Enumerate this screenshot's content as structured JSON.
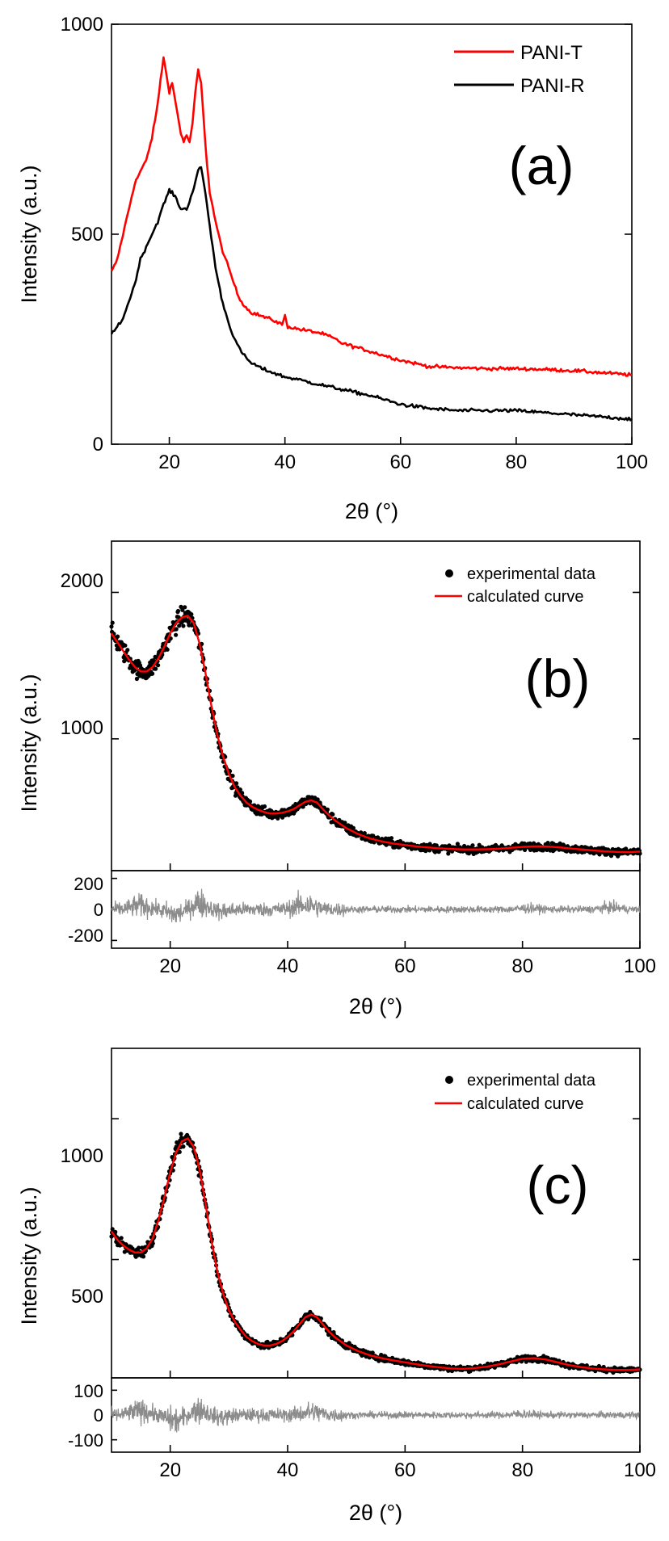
{
  "colors": {
    "red": "#ff0000",
    "black": "#000000",
    "gray": "#8c8c8c"
  },
  "chart_data": [
    {
      "id": "a",
      "type": "line",
      "panel_label": "(a)",
      "xlabel": "2θ (°)",
      "ylabel": "Intensity (a.u.)",
      "xlim": [
        10,
        100
      ],
      "ylim": [
        0,
        1000
      ],
      "xticks": [
        20,
        40,
        60,
        80,
        100
      ],
      "yticks": [
        0,
        500,
        1000
      ],
      "legend_position": "top-right",
      "series": [
        {
          "name": "PANI-T",
          "color": "#ff0000",
          "x": [
            10,
            11,
            12,
            13,
            14,
            15,
            16,
            17,
            18,
            18.5,
            19,
            19.5,
            20,
            20.5,
            21,
            21.5,
            22,
            22.5,
            23,
            23.5,
            24,
            24.5,
            25,
            25.5,
            26,
            26.5,
            27,
            28,
            29,
            30,
            31,
            32,
            33,
            34,
            35,
            36,
            38,
            39.5,
            40,
            40.5,
            42,
            44,
            46,
            48,
            50,
            55,
            60,
            65,
            70,
            75,
            80,
            85,
            90,
            95,
            100
          ],
          "y": [
            410,
            440,
            500,
            560,
            620,
            650,
            675,
            730,
            810,
            870,
            920,
            880,
            840,
            860,
            820,
            780,
            740,
            720,
            735,
            720,
            760,
            840,
            890,
            860,
            760,
            670,
            600,
            530,
            470,
            430,
            390,
            350,
            330,
            315,
            310,
            305,
            295,
            285,
            305,
            280,
            275,
            270,
            265,
            255,
            240,
            220,
            200,
            185,
            182,
            180,
            180,
            178,
            175,
            170,
            165
          ]
        },
        {
          "name": "PANI-R",
          "color": "#000000",
          "x": [
            10,
            12,
            14,
            15,
            16,
            17,
            18,
            19,
            20,
            21,
            22,
            23,
            24,
            25,
            25.5,
            26,
            27,
            28,
            29,
            30,
            31,
            32,
            33,
            34,
            36,
            38,
            40,
            42,
            45,
            50,
            55,
            60,
            65,
            70,
            75,
            80,
            85,
            90,
            95,
            100
          ],
          "y": [
            260,
            300,
            380,
            440,
            470,
            500,
            530,
            570,
            605,
            590,
            560,
            560,
            600,
            650,
            660,
            620,
            520,
            420,
            350,
            300,
            260,
            230,
            210,
            195,
            180,
            170,
            160,
            155,
            145,
            130,
            115,
            95,
            85,
            80,
            80,
            80,
            75,
            70,
            65,
            60
          ]
        }
      ]
    },
    {
      "id": "b",
      "type": "scatter",
      "panel_label": "(b)",
      "xlabel": "2θ (°)",
      "ylabel": "Intensity (a.u.)",
      "xlim": [
        10,
        100
      ],
      "ylim": [
        100,
        2350
      ],
      "xticks": [
        20,
        40,
        60,
        80,
        100
      ],
      "yticks": [
        1000,
        2000
      ],
      "legend_position": "top-right",
      "legend": [
        {
          "label": "experimental data",
          "marker": "dot",
          "color": "#000000"
        },
        {
          "label": "calculated curve",
          "marker": "line",
          "color": "#ff0000"
        }
      ],
      "calculated_curve": {
        "x": [
          10,
          11,
          12,
          13,
          14,
          15,
          16,
          17,
          18,
          19,
          20,
          21,
          22,
          23,
          24,
          25,
          26,
          27,
          28,
          29,
          30,
          31,
          32,
          33,
          34,
          35,
          36,
          37,
          38,
          39,
          40,
          41,
          42,
          43,
          44,
          45,
          46,
          47,
          48,
          50,
          52,
          54,
          56,
          58,
          60,
          62,
          64,
          66,
          68,
          70,
          72,
          74,
          76,
          78,
          80,
          82,
          84,
          86,
          88,
          90,
          92,
          94,
          96,
          98,
          100
        ],
        "y": [
          1720,
          1660,
          1600,
          1540,
          1490,
          1460,
          1460,
          1490,
          1550,
          1630,
          1720,
          1790,
          1830,
          1840,
          1790,
          1650,
          1450,
          1230,
          1030,
          880,
          760,
          670,
          610,
          565,
          535,
          515,
          500,
          490,
          490,
          495,
          505,
          520,
          545,
          570,
          580,
          565,
          520,
          480,
          445,
          390,
          350,
          320,
          300,
          285,
          275,
          265,
          258,
          252,
          248,
          245,
          245,
          246,
          250,
          256,
          262,
          266,
          265,
          260,
          252,
          245,
          238,
          232,
          228,
          226,
          230
        ]
      },
      "residual": {
        "ylim": [
          -250,
          250
        ],
        "yticks": [
          -200,
          0,
          200
        ],
        "peaks": [
          {
            "x": 15,
            "amp": 60
          },
          {
            "x": 21,
            "amp": -80
          },
          {
            "x": 25,
            "amp": 110
          },
          {
            "x": 28,
            "amp": -40
          },
          {
            "x": 43,
            "amp": 80
          },
          {
            "x": 81,
            "amp": 20
          },
          {
            "x": 95,
            "amp": 30
          }
        ]
      }
    },
    {
      "id": "c",
      "type": "scatter",
      "panel_label": "(c)",
      "xlabel": "2θ (°)",
      "ylabel": "Intensity (a.u.)",
      "xlim": [
        10,
        100
      ],
      "ylim": [
        80,
        1250
      ],
      "xticks": [
        20,
        40,
        60,
        80,
        100
      ],
      "yticks": [
        500,
        1000
      ],
      "legend_position": "top-right",
      "legend": [
        {
          "label": "experimental data",
          "marker": "dot",
          "color": "#000000"
        },
        {
          "label": "calculated curve",
          "marker": "line",
          "color": "#ff0000"
        }
      ],
      "calculated_curve": {
        "x": [
          10,
          11,
          12,
          13,
          14,
          15,
          16,
          17,
          18,
          19,
          20,
          21,
          22,
          23,
          24,
          25,
          26,
          27,
          28,
          29,
          30,
          31,
          32,
          33,
          34,
          35,
          36,
          37,
          38,
          39,
          40,
          41,
          42,
          43,
          44,
          45,
          46,
          47,
          48,
          50,
          52,
          54,
          56,
          58,
          60,
          62,
          64,
          66,
          68,
          70,
          72,
          74,
          76,
          78,
          80,
          82,
          84,
          86,
          88,
          90,
          92,
          94,
          96,
          98,
          100
        ],
        "y": [
          600,
          570,
          550,
          535,
          525,
          525,
          540,
          575,
          640,
          720,
          810,
          880,
          920,
          930,
          900,
          820,
          700,
          570,
          460,
          380,
          320,
          280,
          250,
          225,
          210,
          200,
          195,
          195,
          200,
          210,
          225,
          245,
          270,
          295,
          305,
          295,
          270,
          245,
          225,
          195,
          175,
          160,
          150,
          142,
          135,
          128,
          122,
          117,
          113,
          112,
          115,
          120,
          128,
          138,
          148,
          150,
          145,
          135,
          125,
          118,
          113,
          110,
          108,
          108,
          110
        ]
      },
      "residual": {
        "ylim": [
          -150,
          150
        ],
        "yticks": [
          -100,
          0,
          100
        ],
        "peaks": [
          {
            "x": 15,
            "amp": 40
          },
          {
            "x": 21,
            "amp": -60
          },
          {
            "x": 25,
            "amp": 60
          },
          {
            "x": 28,
            "amp": -30
          },
          {
            "x": 44,
            "amp": 30
          },
          {
            "x": 80,
            "amp": 10
          }
        ]
      }
    }
  ]
}
